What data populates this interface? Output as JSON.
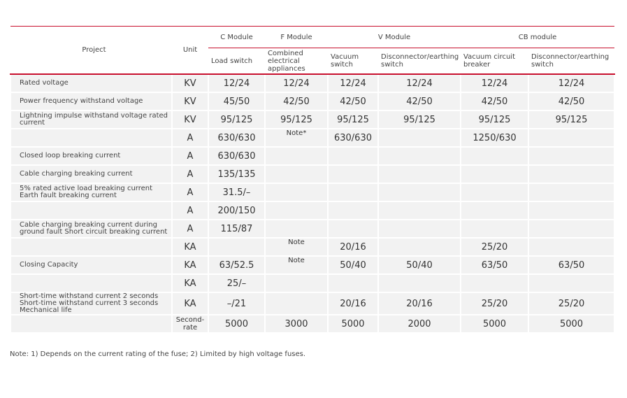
{
  "table": {
    "header": {
      "project": "Project",
      "unit": "Unit",
      "groups": [
        "C Module",
        "F Module",
        "V Module",
        "CB module"
      ],
      "subheaders": [
        "Load switch",
        "Combined electrical appliances",
        "Vacuum switch",
        "Disconnector/earthing switch",
        "Vacuum circuit breaker",
        "Disconnector/earthing switch"
      ]
    },
    "rows": [
      [
        "Rated voltage",
        "KV",
        "12/24",
        "12/24",
        "12/24",
        "12/24",
        "12/24",
        "12/24"
      ],
      [
        "Power frequency withstand voltage",
        "KV",
        "45/50",
        "42/50",
        "42/50",
        "42/50",
        "42/50",
        "42/50"
      ],
      [
        "Lightning impulse withstand voltage rated current",
        "KV",
        "95/125",
        "95/125",
        "95/125",
        "95/125",
        "95/125",
        "95/125"
      ],
      [
        null,
        "A",
        "630/630",
        "Note*",
        "630/630",
        null,
        "1250/630",
        null
      ],
      [
        "Closed loop breaking current",
        "A",
        "630/630",
        null,
        null,
        null,
        null,
        null
      ],
      [
        "Cable charging breaking current",
        "A",
        "135/135",
        null,
        null,
        null,
        null,
        null
      ],
      [
        "5% rated active load breaking current Earth fault breaking current",
        "A",
        "31.5/–",
        null,
        null,
        null,
        null,
        null
      ],
      [
        null,
        "A",
        "200/150",
        null,
        null,
        null,
        null,
        null
      ],
      [
        "Cable charging breaking current during ground fault Short circuit breaking current",
        "A",
        "115/87",
        null,
        null,
        null,
        null,
        null
      ],
      [
        null,
        "KA",
        null,
        "Note",
        "20/16",
        null,
        "25/20",
        null
      ],
      [
        "Closing Capacity",
        "KA",
        "63/52.5",
        "Note",
        "50/40",
        "50/40",
        "63/50",
        "63/50"
      ],
      [
        null,
        "KA",
        "25/–",
        null,
        null,
        null,
        null,
        null
      ],
      [
        "Short-time withstand current 2 seconds Short-time withstand current 3 seconds Mechanical life",
        "KA",
        "–/21",
        null,
        "20/16",
        "20/16",
        "25/20",
        "25/20"
      ],
      [
        null,
        "Second-rate",
        "5000",
        "3000",
        "5000",
        "2000",
        "5000",
        "5000"
      ]
    ]
  },
  "note": "Note: 1) Depends on the current rating of the fuse; 2) Limited by high voltage fuses."
}
